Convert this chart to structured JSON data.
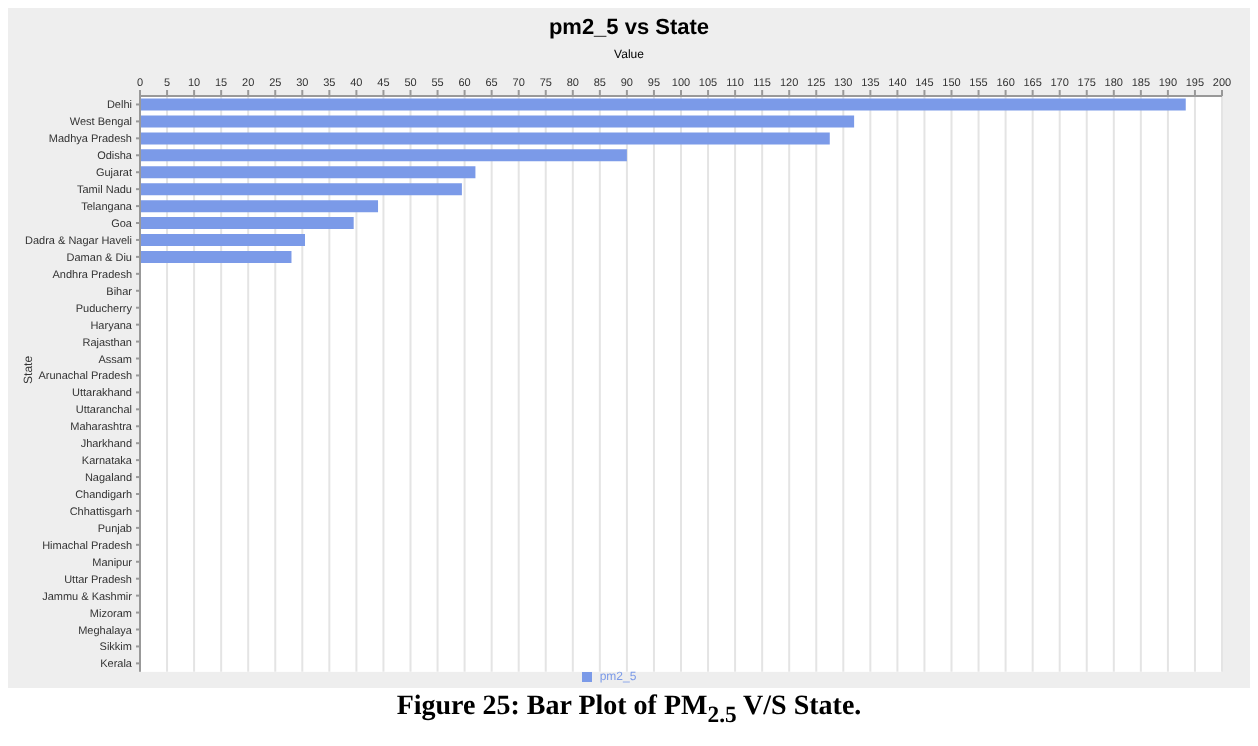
{
  "chart_data": {
    "type": "bar",
    "orientation": "horizontal",
    "title": "pm2_5 vs State",
    "xlabel": "Value",
    "ylabel": "State",
    "categories": [
      "Delhi",
      "West Bengal",
      "Madhya Pradesh",
      "Odisha",
      "Gujarat",
      "Tamil Nadu",
      "Telangana",
      "Goa",
      "Dadra & Nagar Haveli",
      "Daman & Diu",
      "Andhra Pradesh",
      "Bihar",
      "Puducherry",
      "Haryana",
      "Rajasthan",
      "Assam",
      "Arunachal Pradesh",
      "Uttarakhand",
      "Uttaranchal",
      "Maharashtra",
      "Jharkhand",
      "Karnataka",
      "Nagaland",
      "Chandigarh",
      "Chhattisgarh",
      "Punjab",
      "Himachal Pradesh",
      "Manipur",
      "Uttar Pradesh",
      "Jammu & Kashmir",
      "Mizoram",
      "Meghalaya",
      "Sikkim",
      "Kerala"
    ],
    "series": [
      {
        "name": "pm2_5",
        "color": "#7b9ae8",
        "values": [
          193.3,
          132,
          127.5,
          90,
          62,
          59.5,
          44,
          39.5,
          30.5,
          28,
          0,
          0,
          0,
          0,
          0,
          0,
          0,
          0,
          0,
          0,
          0,
          0,
          0,
          0,
          0,
          0,
          0,
          0,
          0,
          0,
          0,
          0,
          0,
          0
        ]
      }
    ],
    "xlim": [
      0,
      200
    ],
    "xticks": [
      0,
      5,
      10,
      15,
      20,
      25,
      30,
      35,
      40,
      45,
      50,
      55,
      60,
      65,
      70,
      75,
      80,
      85,
      90,
      95,
      100,
      105,
      110,
      115,
      120,
      125,
      130,
      135,
      140,
      145,
      150,
      155,
      160,
      165,
      170,
      175,
      180,
      185,
      190,
      195,
      200
    ],
    "grid": "x",
    "legend": "bottom",
    "annotations": [
      "Figure 25: Bar Plot of PM$_{2.5}$ V/S State."
    ]
  }
}
